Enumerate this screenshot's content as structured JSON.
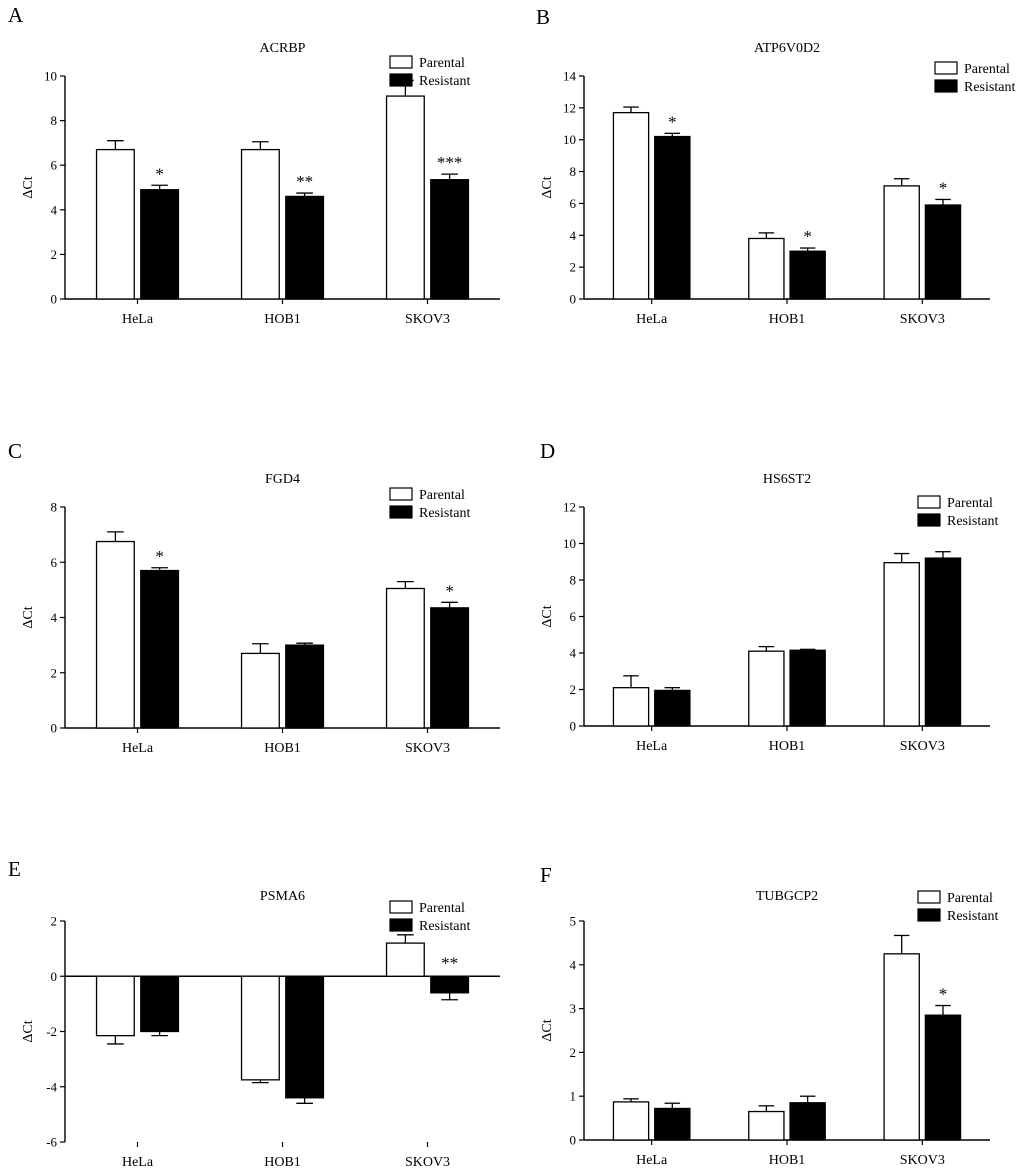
{
  "figure": {
    "series_names": [
      "Parental",
      "Resistant"
    ],
    "series_colors": [
      "#ffffff",
      "#000000"
    ],
    "axis_color": "#000000"
  },
  "chart_data": [
    {
      "panel_label": "A",
      "title": "ACRBP",
      "type": "bar",
      "ylabel": "ΔCt",
      "xlabel": "",
      "categories": [
        "HeLa",
        "HOB1",
        "SKOV3"
      ],
      "ylim": [
        0,
        10
      ],
      "ticks": [
        0,
        2,
        4,
        6,
        8,
        10
      ],
      "series": [
        {
          "name": "Parental",
          "values": [
            6.7,
            6.7,
            9.1
          ],
          "errors": [
            0.4,
            0.35,
            0.7
          ]
        },
        {
          "name": "Resistant",
          "values": [
            4.9,
            4.6,
            5.35
          ],
          "errors": [
            0.2,
            0.15,
            0.25
          ]
        }
      ],
      "significance": [
        "*",
        "**",
        "***"
      ],
      "legend": "top-right"
    },
    {
      "panel_label": "B",
      "title": "ATP6V0D2",
      "type": "bar",
      "ylabel": "ΔCt",
      "xlabel": "",
      "categories": [
        "HeLa",
        "HOB1",
        "SKOV3"
      ],
      "ylim": [
        0,
        14
      ],
      "ticks": [
        0,
        2,
        4,
        6,
        8,
        10,
        12,
        14
      ],
      "series": [
        {
          "name": "Parental",
          "values": [
            11.7,
            3.8,
            7.1
          ],
          "errors": [
            0.35,
            0.35,
            0.45
          ]
        },
        {
          "name": "Resistant",
          "values": [
            10.2,
            3.0,
            5.9
          ],
          "errors": [
            0.2,
            0.2,
            0.35
          ]
        }
      ],
      "significance": [
        "*",
        "*",
        "*"
      ],
      "legend": "top-right"
    },
    {
      "panel_label": "C",
      "title": "FGD4",
      "type": "bar",
      "ylabel": "ΔCt",
      "xlabel": "",
      "categories": [
        "HeLa",
        "HOB1",
        "SKOV3"
      ],
      "ylim": [
        0,
        8
      ],
      "ticks": [
        0,
        2,
        4,
        6,
        8
      ],
      "series": [
        {
          "name": "Parental",
          "values": [
            6.75,
            2.7,
            5.05
          ],
          "errors": [
            0.35,
            0.35,
            0.25
          ]
        },
        {
          "name": "Resistant",
          "values": [
            5.7,
            3.0,
            4.35
          ],
          "errors": [
            0.1,
            0.07,
            0.2
          ]
        }
      ],
      "significance": [
        "*",
        "",
        "*"
      ],
      "legend": "top-right"
    },
    {
      "panel_label": "D",
      "title": "HS6ST2",
      "type": "bar",
      "ylabel": "ΔCt",
      "xlabel": "",
      "categories": [
        "HeLa",
        "HOB1",
        "SKOV3"
      ],
      "ylim": [
        0,
        12
      ],
      "ticks": [
        0,
        2,
        4,
        6,
        8,
        10,
        12
      ],
      "series": [
        {
          "name": "Parental",
          "values": [
            2.1,
            4.1,
            8.95
          ],
          "errors": [
            0.65,
            0.25,
            0.5
          ]
        },
        {
          "name": "Resistant",
          "values": [
            1.95,
            4.15,
            9.2
          ],
          "errors": [
            0.15,
            0.05,
            0.35
          ]
        }
      ],
      "significance": [
        "",
        "",
        ""
      ],
      "legend": "top-right"
    },
    {
      "panel_label": "E",
      "title": "PSMA6",
      "type": "bar",
      "ylabel": "ΔCt",
      "xlabel": "",
      "categories": [
        "HeLa",
        "HOB1",
        "SKOV3"
      ],
      "ylim": [
        -6,
        2
      ],
      "ticks": [
        -6,
        -4,
        -2,
        0,
        2
      ],
      "series": [
        {
          "name": "Parental",
          "values": [
            -2.15,
            -3.75,
            1.2
          ],
          "errors": [
            0.3,
            0.1,
            0.3
          ]
        },
        {
          "name": "Resistant",
          "values": [
            -2.0,
            -4.4,
            -0.6
          ],
          "errors": [
            0.15,
            0.2,
            0.25
          ]
        }
      ],
      "significance": [
        "",
        "",
        "**"
      ],
      "legend": "top-right"
    },
    {
      "panel_label": "F",
      "title": "TUBGCP2",
      "type": "bar",
      "ylabel": "ΔCt",
      "xlabel": "",
      "categories": [
        "HeLa",
        "HOB1",
        "SKOV3"
      ],
      "ylim": [
        0,
        5
      ],
      "ticks": [
        0,
        1,
        2,
        3,
        4,
        5
      ],
      "series": [
        {
          "name": "Parental",
          "values": [
            0.87,
            0.65,
            4.25
          ],
          "errors": [
            0.07,
            0.13,
            0.42
          ]
        },
        {
          "name": "Resistant",
          "values": [
            0.72,
            0.85,
            2.85
          ],
          "errors": [
            0.12,
            0.15,
            0.22
          ]
        }
      ],
      "significance": [
        "",
        "",
        "*"
      ],
      "legend": "top-right"
    }
  ]
}
